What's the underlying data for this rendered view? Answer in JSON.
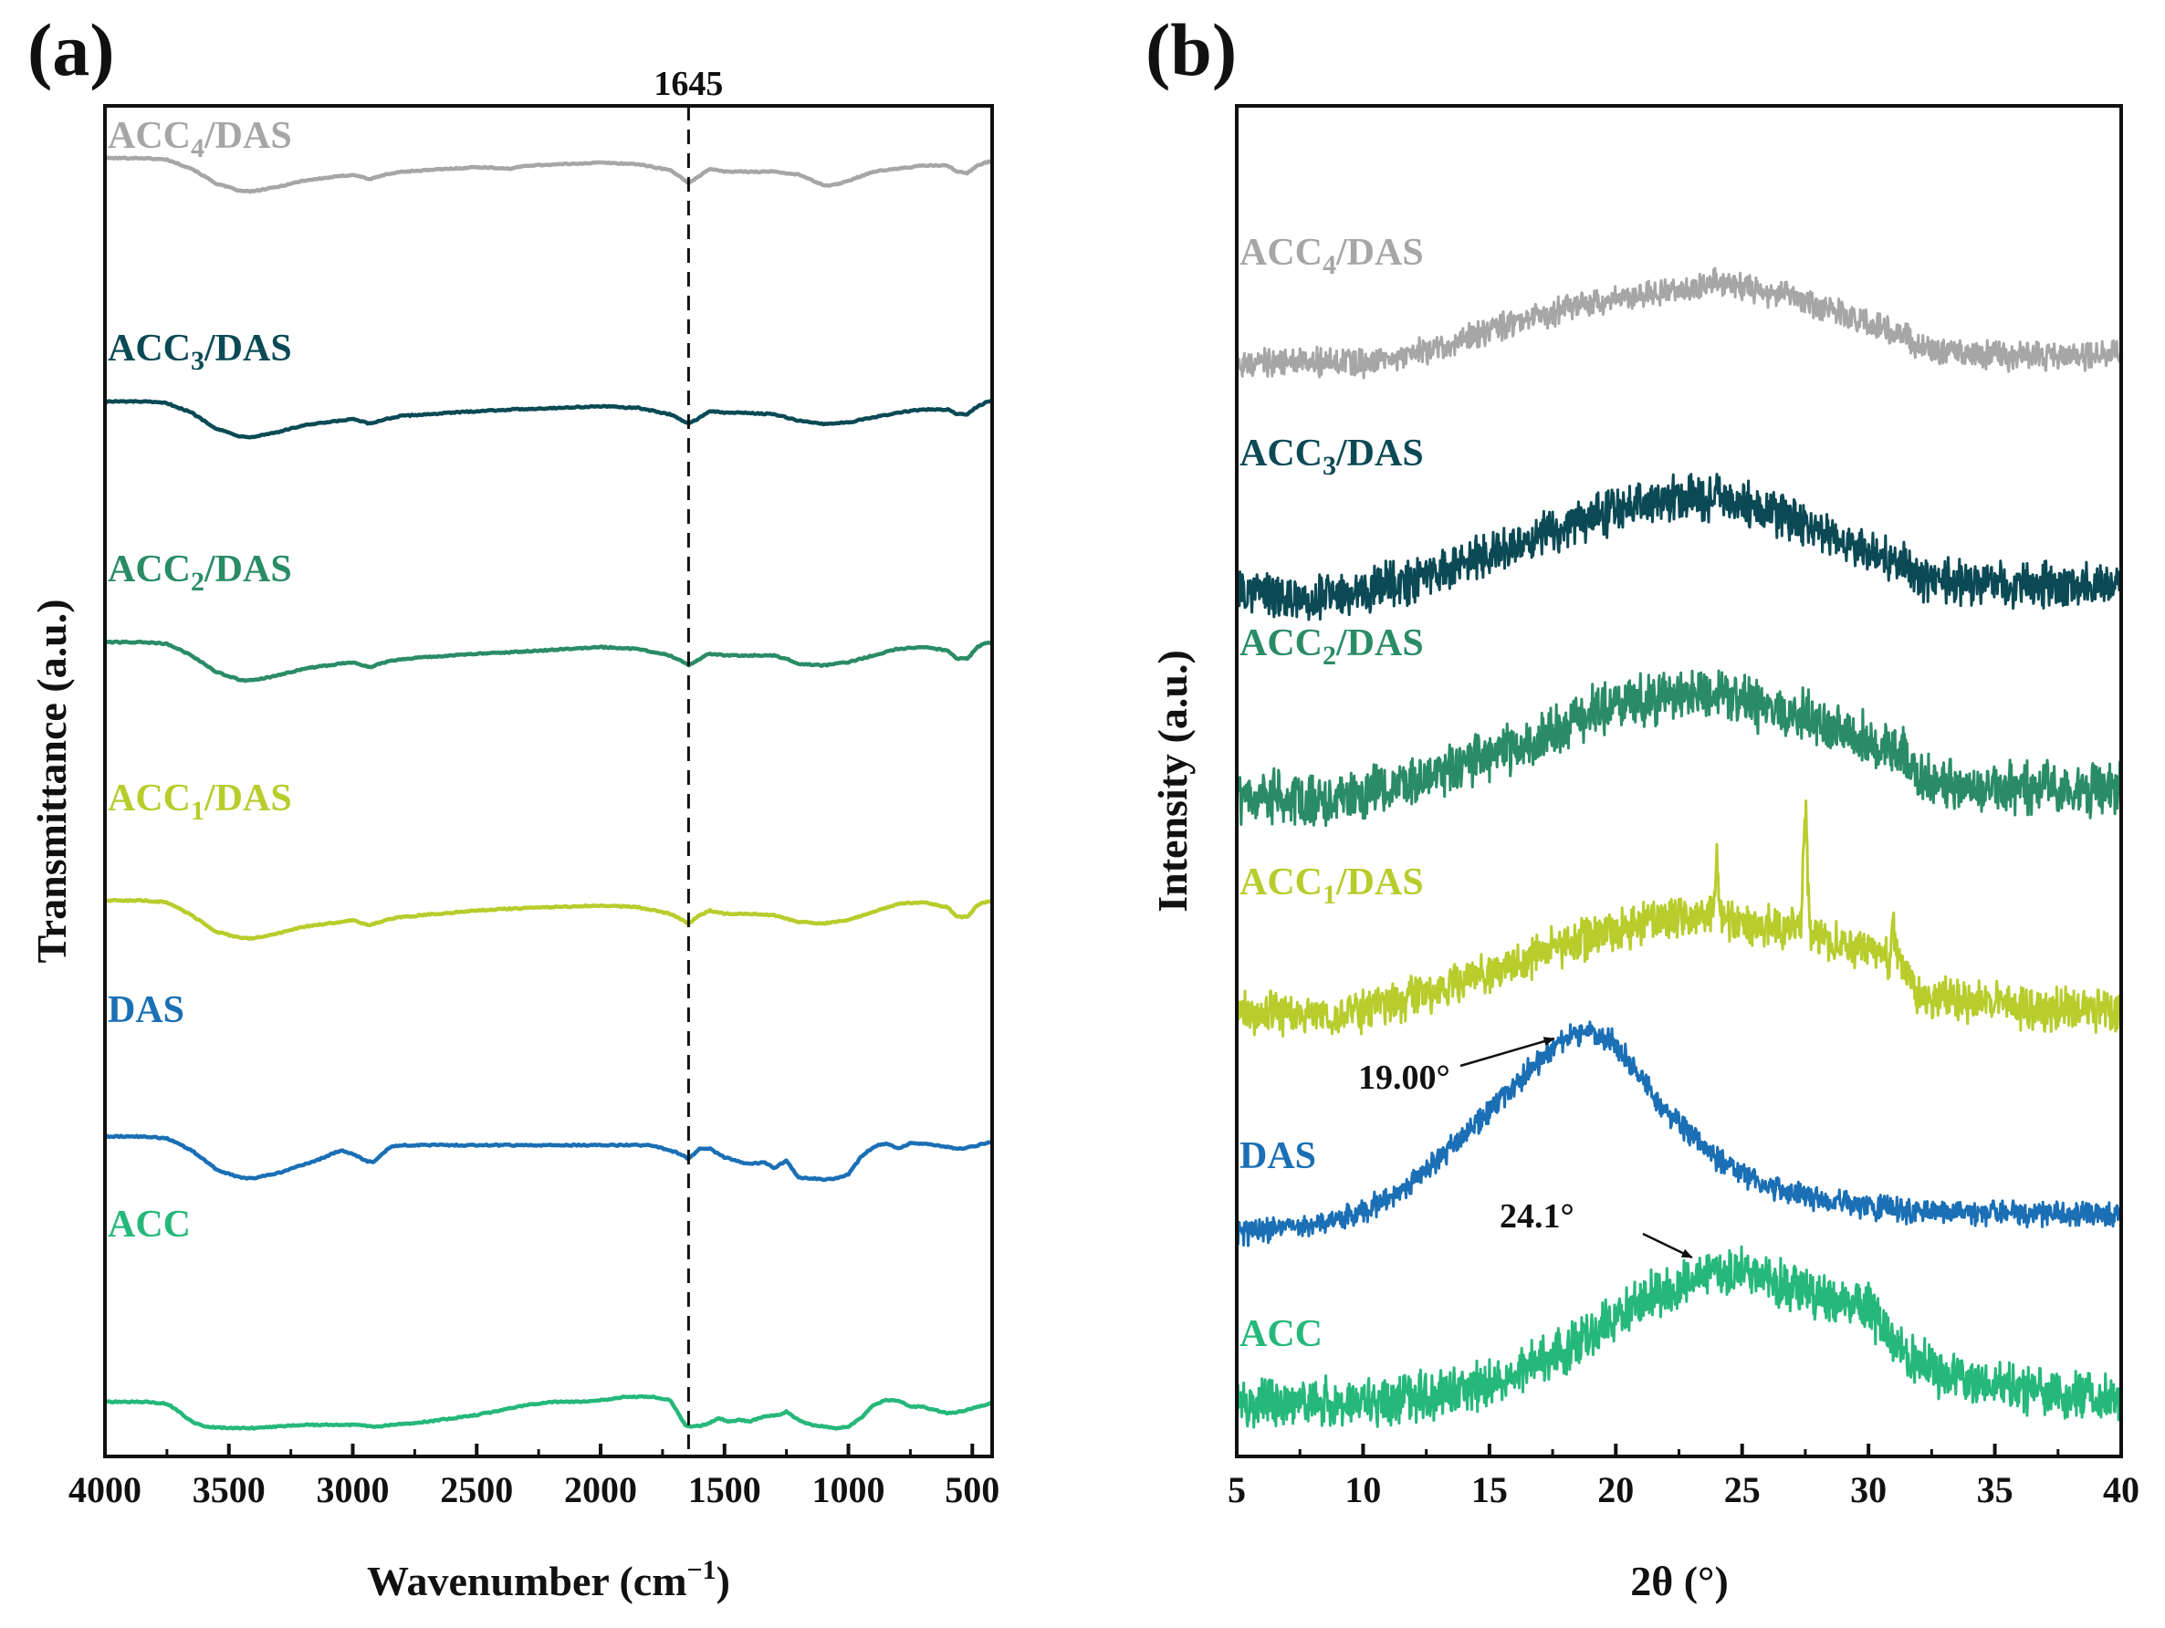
{
  "colors": {
    "ACC4/DAS": "#a6a6a6",
    "ACC3/DAS": "#0b4a55",
    "ACC2/DAS": "#2a8c66",
    "ACC1/DAS": "#b8cc2c",
    "DAS": "#1a6fb5",
    "ACC": "#25b87a"
  },
  "chart_data": [
    {
      "type": "line",
      "panel_label": "(a)",
      "title": "",
      "xlabel_main": "Wavenumber (cm",
      "xlabel_sup": "−1",
      "xlabel_end": ")",
      "ylabel": "Transmittance (a.u.)",
      "xlim": [
        4000,
        420
      ],
      "x_ticks": [
        4000,
        3500,
        3000,
        2500,
        2000,
        1500,
        1000,
        500
      ],
      "x_tick_labels": [
        "4000",
        "3500",
        "3000",
        "2500",
        "2000",
        "1500",
        "1000",
        "500"
      ],
      "reference_line": {
        "x": 1645,
        "label": "1645",
        "style": "dashed"
      },
      "ylim": [
        0,
        100
      ],
      "series": [
        {
          "name": "ACC4/DAS",
          "label_base": "ACC",
          "label_sub": "4",
          "label_rest": "/DAS",
          "x": [
            4000,
            3850,
            3750,
            3650,
            3550,
            3450,
            3400,
            3300,
            3200,
            3000,
            2930,
            2870,
            2800,
            2500,
            2360,
            2300,
            2000,
            1850,
            1720,
            1680,
            1645,
            1620,
            1560,
            1500,
            1420,
            1300,
            1200,
            1100,
            1060,
            1000,
            900,
            800,
            700,
            600,
            560,
            520,
            480,
            450,
            420
          ],
          "y": [
            95,
            95,
            94,
            88,
            78,
            73,
            73,
            76,
            80,
            84,
            81,
            84,
            86,
            89,
            88,
            90,
            92,
            91,
            87,
            83,
            78,
            81,
            88,
            86,
            86,
            86,
            84,
            77,
            77,
            80,
            86,
            88,
            90,
            90,
            86,
            85,
            90,
            92,
            93
          ]
        },
        {
          "name": "ACC3/DAS",
          "label_base": "ACC",
          "label_sub": "3",
          "label_rest": "/DAS",
          "x": [
            4000,
            3850,
            3750,
            3650,
            3550,
            3450,
            3400,
            3300,
            3200,
            3000,
            2930,
            2870,
            2800,
            2500,
            2360,
            2000,
            1850,
            1720,
            1680,
            1645,
            1600,
            1560,
            1500,
            1420,
            1300,
            1200,
            1100,
            1000,
            900,
            800,
            700,
            600,
            560,
            520,
            480,
            450,
            420
          ],
          "y": [
            80,
            80,
            79,
            73,
            63,
            58,
            58,
            61,
            65,
            69,
            66,
            69,
            71,
            74,
            75,
            77,
            76,
            72,
            69,
            66,
            70,
            74,
            73,
            73,
            72,
            68,
            66,
            67,
            70,
            73,
            75,
            75,
            72,
            72,
            77,
            79,
            81
          ]
        },
        {
          "name": "ACC2/DAS",
          "label_base": "ACC",
          "label_sub": "2",
          "label_rest": "/DAS",
          "x": [
            4000,
            3850,
            3750,
            3650,
            3550,
            3450,
            3400,
            3300,
            3200,
            3000,
            2930,
            2870,
            2800,
            2500,
            2360,
            2000,
            1850,
            1720,
            1680,
            1645,
            1600,
            1560,
            1500,
            1420,
            1300,
            1250,
            1200,
            1100,
            1000,
            900,
            800,
            700,
            600,
            560,
            520,
            480,
            450,
            420
          ],
          "y": [
            65,
            65,
            64,
            57,
            47,
            42,
            42,
            45,
            49,
            53,
            50,
            53,
            55,
            58,
            59,
            62,
            61,
            57,
            54,
            51,
            55,
            58,
            57,
            57,
            57,
            55,
            52,
            51,
            53,
            57,
            61,
            62,
            60,
            55,
            55,
            62,
            64,
            65
          ]
        },
        {
          "name": "ACC1/DAS",
          "label_base": "ACC",
          "label_sub": "1",
          "label_rest": "/DAS",
          "x": [
            4000,
            3850,
            3750,
            3650,
            3550,
            3450,
            3400,
            3300,
            3200,
            3000,
            2930,
            2870,
            2800,
            2500,
            2360,
            2000,
            1850,
            1720,
            1680,
            1645,
            1600,
            1560,
            1500,
            1420,
            1300,
            1250,
            1200,
            1100,
            1000,
            900,
            800,
            700,
            600,
            560,
            520,
            480,
            450,
            420
          ],
          "y": [
            49,
            49,
            48,
            40,
            30,
            26,
            26,
            29,
            33,
            37,
            34,
            37,
            39,
            43,
            44,
            46,
            45,
            41,
            38,
            35,
            40,
            43,
            41,
            41,
            40,
            38,
            36,
            35,
            37,
            42,
            47,
            48,
            45,
            39,
            39,
            46,
            48,
            49
          ]
        },
        {
          "name": "DAS",
          "label_base": "DAS",
          "label_sub": "",
          "label_rest": "",
          "x": [
            4000,
            3850,
            3750,
            3650,
            3550,
            3450,
            3400,
            3300,
            3150,
            3050,
            3000,
            2950,
            2920,
            2880,
            2850,
            2800,
            2500,
            2000,
            1800,
            1720,
            1680,
            1645,
            1600,
            1560,
            1500,
            1450,
            1400,
            1340,
            1300,
            1250,
            1200,
            1150,
            1100,
            1050,
            1000,
            950,
            900,
            850,
            800,
            750,
            700,
            600,
            550,
            500,
            450,
            420
          ],
          "y": [
            34,
            34,
            33,
            26,
            15,
            10,
            10,
            13,
            20,
            26,
            24,
            20,
            19,
            24,
            28,
            29,
            29,
            29,
            29,
            26,
            24,
            21,
            27,
            27,
            22,
            20,
            18,
            19,
            16,
            20,
            10,
            10,
            9,
            10,
            12,
            22,
            28,
            30,
            27,
            30,
            30,
            28,
            27,
            28,
            30,
            31
          ]
        },
        {
          "name": "ACC",
          "label_base": "ACC",
          "label_sub": "",
          "label_rest": "",
          "x": [
            4000,
            3850,
            3750,
            3700,
            3650,
            3600,
            3500,
            3400,
            3200,
            3100,
            3000,
            2900,
            2700,
            2500,
            2300,
            2200,
            2100,
            2000,
            1900,
            1850,
            1780,
            1720,
            1690,
            1660,
            1645,
            1620,
            1580,
            1520,
            1480,
            1440,
            1400,
            1340,
            1280,
            1250,
            1200,
            1150,
            1100,
            1050,
            1000,
            950,
            900,
            850,
            800,
            750,
            700,
            650,
            600,
            550,
            500,
            450,
            420
          ],
          "y": [
            16,
            16,
            15,
            10,
            4,
            1,
            0,
            0,
            2,
            2,
            2,
            1,
            4,
            8,
            14,
            16,
            16,
            17,
            19,
            19,
            19,
            17,
            10,
            2,
            1,
            1,
            2,
            6,
            4,
            5,
            4,
            7,
            8,
            10,
            5,
            2,
            1,
            0,
            1,
            6,
            14,
            17,
            17,
            13,
            13,
            11,
            9,
            10,
            12,
            14,
            16
          ]
        }
      ]
    },
    {
      "type": "line",
      "panel_label": "(b)",
      "title": "",
      "xlabel": "2θ (°)",
      "ylabel": "Intensity (a.u.)",
      "xlim": [
        5,
        40
      ],
      "x_ticks": [
        5,
        10,
        15,
        20,
        25,
        30,
        35,
        40
      ],
      "x_tick_labels": [
        "5",
        "10",
        "15",
        "20",
        "25",
        "30",
        "35",
        "40"
      ],
      "ylim": [
        0,
        100
      ],
      "annotations": [
        {
          "text": "19.00°",
          "x": 19.0,
          "series": "DAS"
        },
        {
          "text": "24.1°",
          "x": 24.1,
          "series": "ACC"
        }
      ],
      "series": [
        {
          "name": "ACC4/DAS",
          "label_base": "ACC",
          "label_sub": "4",
          "label_rest": "/DAS",
          "x": [
            5,
            8,
            10,
            13,
            16,
            19,
            21,
            23,
            24,
            25,
            27,
            28,
            30,
            31.5,
            32,
            35,
            38,
            40
          ],
          "y": [
            81,
            81,
            81,
            82,
            84,
            85.5,
            86,
            86.5,
            87,
            86.5,
            86,
            85,
            84,
            83,
            82,
            81.5,
            81.5,
            81.5
          ],
          "noise": 0.8
        },
        {
          "name": "ACC3/DAS",
          "label_base": "ACC",
          "label_sub": "3",
          "label_rest": "/DAS",
          "x": [
            5,
            8,
            10,
            13,
            16,
            19,
            21,
            23,
            24,
            25,
            27,
            28,
            30,
            31.5,
            32,
            35,
            38,
            40
          ],
          "y": [
            64,
            63.5,
            64,
            65.5,
            67.5,
            69.5,
            70.5,
            71,
            71,
            70.5,
            69.5,
            68.5,
            67,
            66,
            65,
            64.5,
            64.5,
            64.5
          ],
          "noise": 1.3
        },
        {
          "name": "ACC2/DAS",
          "label_base": "ACC",
          "label_sub": "2",
          "label_rest": "/DAS",
          "x": [
            5,
            8,
            10,
            13,
            16,
            19,
            21,
            23,
            24,
            25,
            27,
            28,
            30,
            31.5,
            32,
            35,
            38,
            40
          ],
          "y": [
            49,
            48.5,
            49,
            50.5,
            52.5,
            55,
            56,
            56.5,
            56.5,
            56,
            55,
            54.5,
            53,
            52,
            50,
            49.5,
            49.5,
            49.5
          ],
          "noise": 1.5
        },
        {
          "name": "ACC1/DAS",
          "label_base": "ACC",
          "label_sub": "1",
          "label_rest": "/DAS",
          "x": [
            5,
            8,
            10,
            13,
            16,
            19,
            21,
            23,
            24,
            25,
            27,
            28,
            30,
            31.5,
            32,
            35,
            38,
            40
          ],
          "y": [
            33,
            32.5,
            33,
            34.5,
            36.5,
            38.5,
            39.5,
            40,
            40,
            39.5,
            39,
            38.5,
            37.5,
            36,
            34,
            33.5,
            33,
            33
          ],
          "noise": 1.2,
          "peaks": [
            {
              "x": 24.0,
              "h": 4
            },
            {
              "x": 27.5,
              "h": 8.5
            },
            {
              "x": 31.0,
              "h": 2.5
            }
          ]
        },
        {
          "name": "DAS",
          "label_base": "DAS",
          "label_sub": "",
          "label_rest": "",
          "x": [
            5,
            7,
            9,
            11,
            13,
            15,
            16.5,
            18,
            19,
            20,
            21,
            22,
            24,
            26,
            28,
            30,
            33,
            36,
            40
          ],
          "y": [
            16.5,
            17,
            17.5,
            19,
            22,
            25.5,
            28.5,
            31,
            31.5,
            30.5,
            28,
            25.5,
            22,
            20,
            19,
            18.5,
            18,
            18,
            18
          ],
          "noise": 0.7
        },
        {
          "name": "ACC",
          "label_base": "ACC",
          "label_sub": "",
          "label_rest": "",
          "x": [
            5,
            8,
            10,
            13,
            15,
            17,
            19,
            21,
            23,
            24,
            25,
            26,
            28,
            30,
            31,
            33,
            36,
            40
          ],
          "y": [
            4,
            4,
            4,
            4.5,
            5.5,
            7,
            9,
            11.5,
            13,
            13.5,
            13.5,
            13,
            12,
            11,
            8,
            6,
            5,
            4
          ],
          "noise": 1.4
        }
      ]
    }
  ]
}
